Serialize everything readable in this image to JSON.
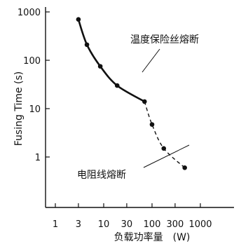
{
  "chart_data": {
    "type": "line",
    "title": "",
    "xlabel": "负载功率量　(W)",
    "ylabel": "Fusing Time (s)",
    "x_scale": "log",
    "y_scale": "log",
    "xlim": [
      0.5,
      1000
    ],
    "ylim": [
      0.1,
      1000
    ],
    "x_ticks": [
      1,
      3,
      10,
      30,
      100,
      300,
      1000
    ],
    "x_tick_labels": [
      "1",
      "3",
      "10",
      "30",
      "100",
      "300",
      "1000"
    ],
    "y_ticks": [
      1,
      10,
      100,
      1000
    ],
    "y_tick_labels": [
      "1",
      "10",
      "100",
      "1000"
    ],
    "grid": false,
    "series": [
      {
        "name": "温度保险丝熔断",
        "style": "solid",
        "x": [
          3,
          4.5,
          8.5,
          19,
          70
        ],
        "y": [
          700,
          210,
          75,
          30,
          14
        ]
      },
      {
        "name": "电阻线熔断",
        "style": "dashed",
        "x": [
          70,
          100,
          175,
          475
        ],
        "y": [
          14,
          4.7,
          1.5,
          0.6
        ]
      }
    ],
    "annotations": [
      {
        "text": "温度保险丝熔断",
        "target_series": 0
      },
      {
        "text": "电阻线熔断",
        "target_series": 1
      }
    ]
  }
}
